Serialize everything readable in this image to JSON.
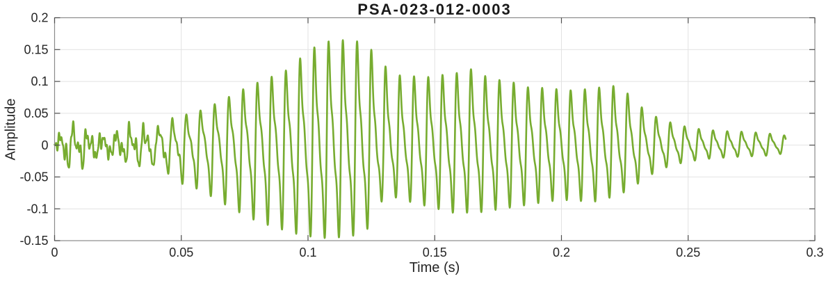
{
  "chart_data": {
    "type": "line",
    "title": "PSA-023-012-0003",
    "xlabel": "Time (s)",
    "ylabel": "Amplitude",
    "xlim": [
      0,
      0.3
    ],
    "ylim": [
      -0.15,
      0.2
    ],
    "grid": true,
    "legend": "none",
    "line_color": "#77AC30",
    "grid_color": "#e2e2e2",
    "axes_color": "#8a8a8a",
    "tick_color": "#4d4d4d",
    "text_color": "#262626",
    "xticks": [
      {
        "v": 0,
        "label": "0"
      },
      {
        "v": 0.05,
        "label": "0.05"
      },
      {
        "v": 0.1,
        "label": "0.1"
      },
      {
        "v": 0.15,
        "label": "0.15"
      },
      {
        "v": 0.2,
        "label": "0.2"
      },
      {
        "v": 0.25,
        "label": "0.25"
      },
      {
        "v": 0.3,
        "label": "0.3"
      }
    ],
    "yticks": [
      {
        "v": -0.15,
        "label": "-0.15"
      },
      {
        "v": -0.1,
        "label": "-0.1"
      },
      {
        "v": -0.05,
        "label": "-0.05"
      },
      {
        "v": 0,
        "label": "0"
      },
      {
        "v": 0.05,
        "label": "0.05"
      },
      {
        "v": 0.1,
        "label": "0.1"
      },
      {
        "v": 0.15,
        "label": "0.15"
      },
      {
        "v": 0.2,
        "label": "0.2"
      }
    ],
    "signal": {
      "model": "amplitude-modulated harmonic oscillation (speech-like burst)",
      "t_start": 0,
      "t_end": 0.2885,
      "fundamental_hz": 178,
      "phase0": 5.6,
      "sample_dt": 8e-05,
      "harmonics": [
        {
          "n": 1,
          "amp": 1.0,
          "phase": 0
        },
        {
          "n": 2,
          "amp": 0.45,
          "phase": 0
        },
        {
          "n": 3,
          "amp": 0.2,
          "phase": 0
        }
      ],
      "envelope_pos": [
        [
          0.0,
          0.006
        ],
        [
          0.003,
          0.018
        ],
        [
          0.006,
          0.026
        ],
        [
          0.01,
          0.021
        ],
        [
          0.014,
          0.013
        ],
        [
          0.02,
          0.013
        ],
        [
          0.026,
          0.018
        ],
        [
          0.032,
          0.022
        ],
        [
          0.038,
          0.026
        ],
        [
          0.044,
          0.034
        ],
        [
          0.05,
          0.044
        ],
        [
          0.056,
          0.052
        ],
        [
          0.062,
          0.062
        ],
        [
          0.068,
          0.074
        ],
        [
          0.074,
          0.087
        ],
        [
          0.08,
          0.098
        ],
        [
          0.086,
          0.108
        ],
        [
          0.09,
          0.114
        ],
        [
          0.094,
          0.124
        ],
        [
          0.098,
          0.141
        ],
        [
          0.103,
          0.155
        ],
        [
          0.108,
          0.163
        ],
        [
          0.113,
          0.165
        ],
        [
          0.118,
          0.164
        ],
        [
          0.122,
          0.161
        ],
        [
          0.127,
          0.142
        ],
        [
          0.13,
          0.126
        ],
        [
          0.134,
          0.11
        ],
        [
          0.14,
          0.109
        ],
        [
          0.146,
          0.106
        ],
        [
          0.152,
          0.11
        ],
        [
          0.158,
          0.112
        ],
        [
          0.163,
          0.122
        ],
        [
          0.168,
          0.111
        ],
        [
          0.174,
          0.103
        ],
        [
          0.18,
          0.1
        ],
        [
          0.186,
          0.091
        ],
        [
          0.192,
          0.09
        ],
        [
          0.198,
          0.088
        ],
        [
          0.204,
          0.086
        ],
        [
          0.21,
          0.088
        ],
        [
          0.216,
          0.091
        ],
        [
          0.221,
          0.093
        ],
        [
          0.227,
          0.079
        ],
        [
          0.233,
          0.054
        ],
        [
          0.239,
          0.041
        ],
        [
          0.245,
          0.033
        ],
        [
          0.251,
          0.027
        ],
        [
          0.257,
          0.024
        ],
        [
          0.264,
          0.022
        ],
        [
          0.272,
          0.021
        ],
        [
          0.28,
          0.019
        ],
        [
          0.2885,
          0.015
        ]
      ],
      "envelope_neg": [
        [
          0.0,
          0.01
        ],
        [
          0.003,
          0.024
        ],
        [
          0.006,
          0.036
        ],
        [
          0.01,
          0.028
        ],
        [
          0.015,
          0.017
        ],
        [
          0.02,
          0.017
        ],
        [
          0.026,
          0.021
        ],
        [
          0.032,
          0.026
        ],
        [
          0.038,
          0.033
        ],
        [
          0.044,
          0.044
        ],
        [
          0.05,
          0.057
        ],
        [
          0.056,
          0.068
        ],
        [
          0.062,
          0.081
        ],
        [
          0.068,
          0.095
        ],
        [
          0.074,
          0.108
        ],
        [
          0.08,
          0.12
        ],
        [
          0.086,
          0.128
        ],
        [
          0.09,
          0.133
        ],
        [
          0.095,
          0.139
        ],
        [
          0.1,
          0.143
        ],
        [
          0.105,
          0.146
        ],
        [
          0.11,
          0.146
        ],
        [
          0.115,
          0.144
        ],
        [
          0.12,
          0.141
        ],
        [
          0.124,
          0.13
        ],
        [
          0.128,
          0.095
        ],
        [
          0.131,
          0.077
        ],
        [
          0.135,
          0.083
        ],
        [
          0.14,
          0.089
        ],
        [
          0.146,
          0.095
        ],
        [
          0.152,
          0.101
        ],
        [
          0.158,
          0.107
        ],
        [
          0.164,
          0.106
        ],
        [
          0.17,
          0.105
        ],
        [
          0.176,
          0.1
        ],
        [
          0.182,
          0.097
        ],
        [
          0.188,
          0.093
        ],
        [
          0.194,
          0.089
        ],
        [
          0.2,
          0.086
        ],
        [
          0.206,
          0.087
        ],
        [
          0.212,
          0.09
        ],
        [
          0.217,
          0.085
        ],
        [
          0.222,
          0.079
        ],
        [
          0.227,
          0.07
        ],
        [
          0.232,
          0.055
        ],
        [
          0.238,
          0.04
        ],
        [
          0.244,
          0.031
        ],
        [
          0.25,
          0.026
        ],
        [
          0.256,
          0.022
        ],
        [
          0.263,
          0.02
        ],
        [
          0.271,
          0.018
        ],
        [
          0.28,
          0.017
        ],
        [
          0.2885,
          0.013
        ]
      ],
      "noise": {
        "fade_start": 0.032,
        "fade_end": 0.058,
        "components": [
          {
            "freq": 405,
            "amp": 0.0085,
            "phase": 1.7
          },
          {
            "freq": 690,
            "amp": 0.006,
            "phase": 0.3
          },
          {
            "freq": 1050,
            "amp": 0.0045,
            "phase": 3.1
          }
        ]
      }
    }
  }
}
